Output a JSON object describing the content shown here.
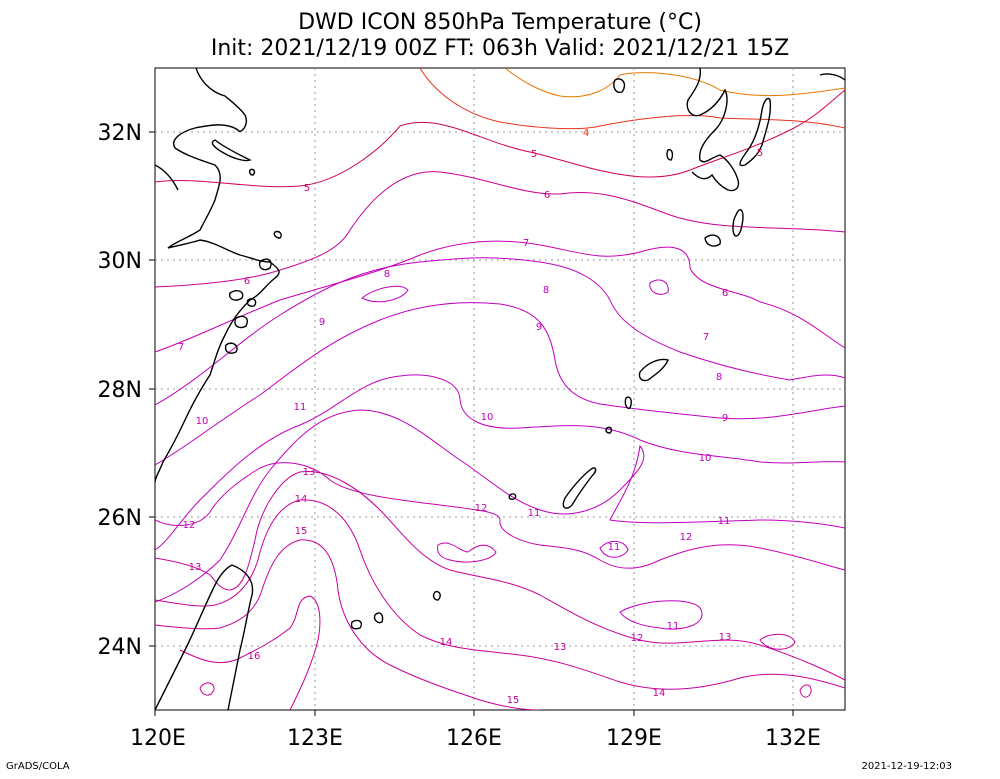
{
  "title": {
    "line1": "DWD ICON 850hPa Temperature (°C)",
    "line2": "Init: 2021/12/19 00Z  FT: 063h  Valid: 2021/12/21 15Z"
  },
  "footer": {
    "left": "GrADS/COLA",
    "right": "2021-12-19-12:03"
  },
  "axes": {
    "x_labels": [
      "120E",
      "123E",
      "126E",
      "129E",
      "132E"
    ],
    "y_labels": [
      "32N",
      "30N",
      "28N",
      "26N",
      "24N"
    ],
    "lon_range": [
      120,
      133
    ],
    "lat_range": [
      23,
      33
    ],
    "grid": "dotted"
  },
  "contours": {
    "unit": "°C",
    "levels": [
      {
        "value": 3,
        "label": "",
        "color": "#e87800"
      },
      {
        "value": 4,
        "label": "4",
        "color": "#e8321e"
      },
      {
        "value": 5,
        "label": "5",
        "color": "#d2005a"
      },
      {
        "value": 6,
        "label": "6",
        "color": "#c80096"
      },
      {
        "value": 7,
        "label": "7",
        "color": "#c800b4"
      },
      {
        "value": 8,
        "label": "8",
        "color": "#c000c0"
      },
      {
        "value": 9,
        "label": "9",
        "color": "#c000c0"
      },
      {
        "value": 10,
        "label": "10",
        "color": "#c000c0"
      },
      {
        "value": 11,
        "label": "11",
        "color": "#c000c0"
      },
      {
        "value": 12,
        "label": "12",
        "color": "#c800b4"
      },
      {
        "value": 13,
        "label": "13",
        "color": "#c8009a"
      },
      {
        "value": 14,
        "label": "14",
        "color": "#c8009a"
      },
      {
        "value": 15,
        "label": "15",
        "color": "#c8009a"
      },
      {
        "value": 16,
        "label": "16",
        "color": "#c8009a"
      }
    ]
  }
}
